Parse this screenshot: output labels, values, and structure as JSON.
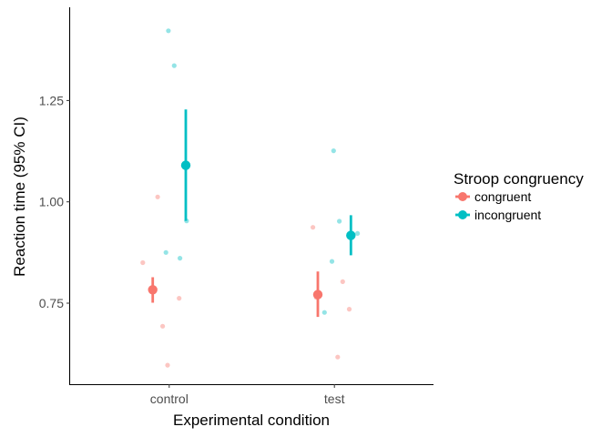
{
  "chart_data": {
    "type": "scatter",
    "xlabel": "Experimental condition",
    "ylabel": "Reaction time (95% CI)",
    "categories": [
      "control",
      "test"
    ],
    "ylim": [
      0.55,
      1.48
    ],
    "yticks": [
      0.75,
      1.0,
      1.25
    ],
    "ytick_labels": [
      "0.75",
      "1.00",
      "1.25"
    ],
    "grid": false,
    "legend": {
      "title": "Stroop congruency",
      "position": "right"
    },
    "series": [
      {
        "name": "congruent",
        "color": "#F8766D",
        "summary": [
          {
            "category": "control",
            "mean": 0.783,
            "ci_low": 0.751,
            "ci_high": 0.814
          },
          {
            "category": "test",
            "mean": 0.771,
            "ci_low": 0.716,
            "ci_high": 0.828
          }
        ],
        "points": [
          {
            "category": "control",
            "jitter": -0.16,
            "y": 0.85
          },
          {
            "category": "control",
            "jitter": -0.07,
            "y": 1.012
          },
          {
            "category": "control",
            "jitter": -0.04,
            "y": 0.693
          },
          {
            "category": "control",
            "jitter": -0.01,
            "y": 0.597
          },
          {
            "category": "control",
            "jitter": 0.06,
            "y": 0.762
          },
          {
            "category": "test",
            "jitter": -0.13,
            "y": 0.937
          },
          {
            "category": "test",
            "jitter": -0.11,
            "y": 0.764
          },
          {
            "category": "test",
            "jitter": 0.02,
            "y": 0.617
          },
          {
            "category": "test",
            "jitter": 0.05,
            "y": 0.803
          },
          {
            "category": "test",
            "jitter": 0.09,
            "y": 0.735
          }
        ]
      },
      {
        "name": "incongruent",
        "color": "#00BFC4",
        "summary": [
          {
            "category": "control",
            "mean": 1.09,
            "ci_low": 0.953,
            "ci_high": 1.228
          },
          {
            "category": "test",
            "mean": 0.917,
            "ci_low": 0.868,
            "ci_high": 0.967
          }
        ],
        "points": [
          {
            "category": "control",
            "jitter": -0.02,
            "y": 0.875
          },
          {
            "category": "control",
            "jitter": -0.005,
            "y": 1.422
          },
          {
            "category": "control",
            "jitter": 0.03,
            "y": 1.336
          },
          {
            "category": "control",
            "jitter": 0.065,
            "y": 0.861
          },
          {
            "category": "control",
            "jitter": 0.105,
            "y": 0.953
          },
          {
            "category": "test",
            "jitter": -0.06,
            "y": 0.727
          },
          {
            "category": "test",
            "jitter": -0.015,
            "y": 0.853
          },
          {
            "category": "test",
            "jitter": -0.005,
            "y": 1.126
          },
          {
            "category": "test",
            "jitter": 0.03,
            "y": 0.952
          },
          {
            "category": "test",
            "jitter": 0.14,
            "y": 0.922
          }
        ]
      }
    ]
  }
}
